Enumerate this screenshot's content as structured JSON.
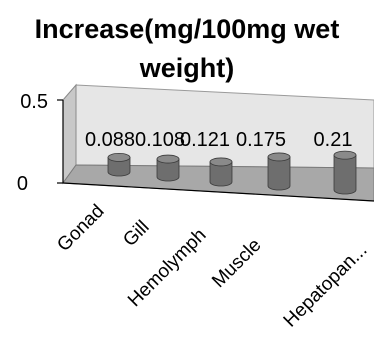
{
  "chart_data": {
    "type": "bar",
    "title_lines": [
      "Increase(mg/100mg wet",
      "weight)"
    ],
    "categories": [
      "Gonad",
      "Gill",
      "Hemolymph",
      "Muscle",
      "Hepatopan..."
    ],
    "values": [
      0.088,
      0.108,
      0.121,
      0.175,
      0.21
    ],
    "value_labels": [
      "0.088",
      "0.108",
      "0.121",
      "0.175",
      "0.21"
    ],
    "ylim": [
      0,
      0.5
    ],
    "y_ticks": [
      "0",
      "0.5"
    ],
    "grid": false,
    "legend": "none",
    "style": "3d-cylinder",
    "colors": {
      "bar_body": "#6e6e6e",
      "bar_top": "#8a8a8a",
      "wall": "#e6e6e6",
      "floor": "#a8a8a8"
    }
  }
}
